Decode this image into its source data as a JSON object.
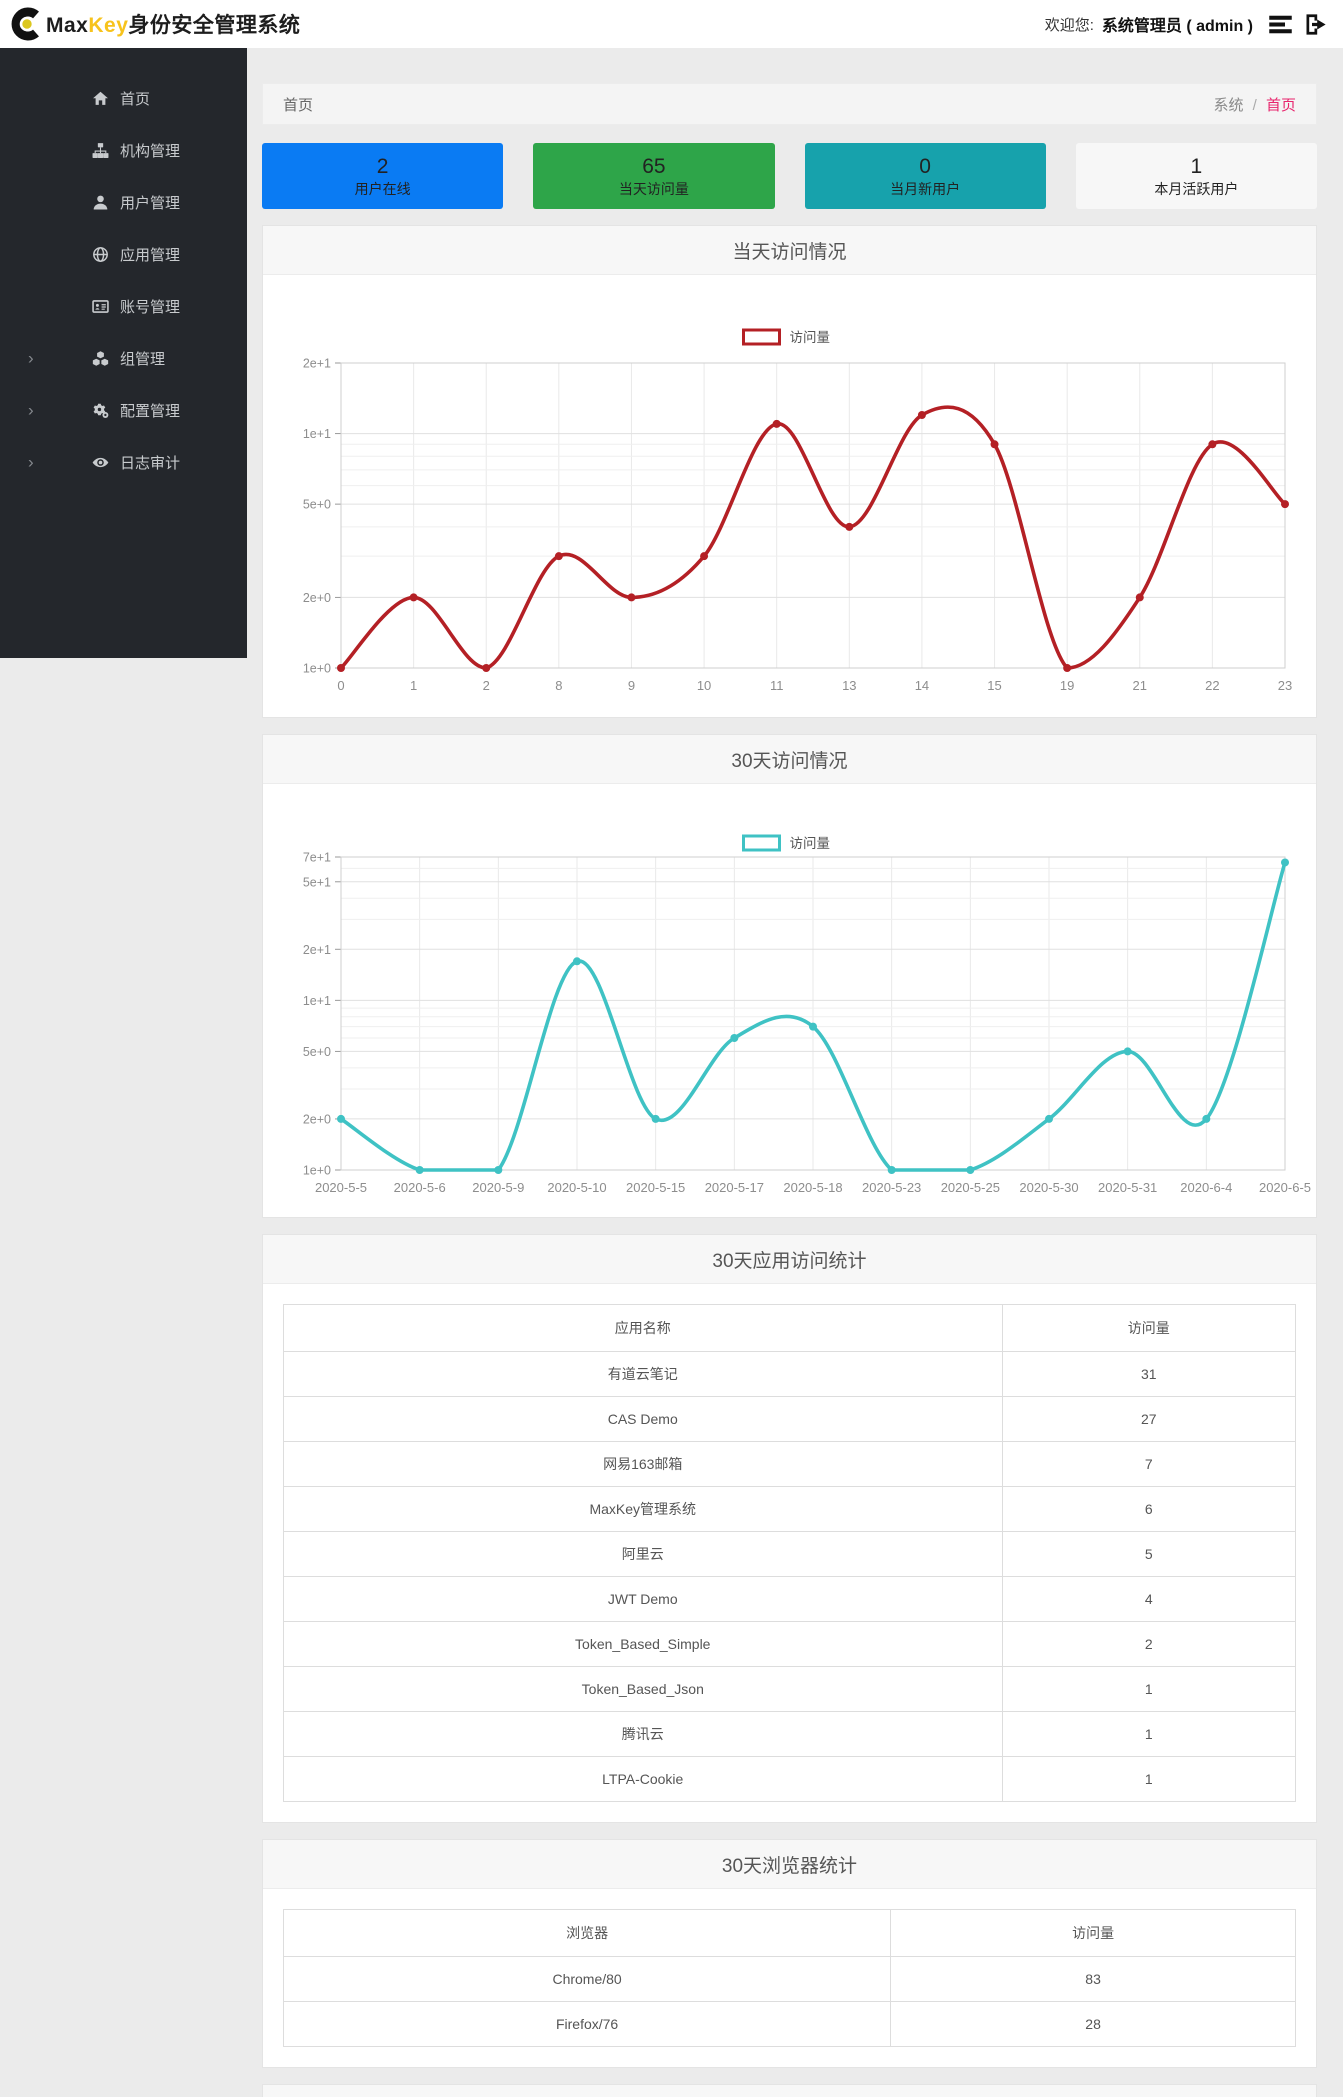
{
  "header": {
    "logo_prefix": "Max",
    "logo_highlight": "Key",
    "logo_suffix": "身份安全管理系统",
    "logo_highlight_color": "#f7c31c",
    "welcome_label": "欢迎您:",
    "username": "系统管理员 ( admin )"
  },
  "sidebar": {
    "items": [
      {
        "label": "首页",
        "icon": "home-icon",
        "expandable": false
      },
      {
        "label": "机构管理",
        "icon": "sitemap-icon",
        "expandable": false
      },
      {
        "label": "用户管理",
        "icon": "user-icon",
        "expandable": false
      },
      {
        "label": "应用管理",
        "icon": "globe-icon",
        "expandable": false
      },
      {
        "label": "账号管理",
        "icon": "id-card-icon",
        "expandable": false
      },
      {
        "label": "组管理",
        "icon": "cubes-icon",
        "expandable": true
      },
      {
        "label": "配置管理",
        "icon": "cogs-icon",
        "expandable": true
      },
      {
        "label": "日志审计",
        "icon": "eye-icon",
        "expandable": true
      }
    ]
  },
  "breadcrumb": {
    "page_title": "首页",
    "root": "系统",
    "separator": "/",
    "current": "首页",
    "current_color": "#e8256d"
  },
  "stat_cards": [
    {
      "value": "2",
      "label": "用户在线",
      "bg": "#0a7bf3"
    },
    {
      "value": "65",
      "label": "当天访问量",
      "bg": "#2ea549"
    },
    {
      "value": "0",
      "label": "当月新用户",
      "bg": "#17a2ac"
    },
    {
      "value": "1",
      "label": "本月活跃用户",
      "bg": "#f7f7f7"
    }
  ],
  "chart_data": [
    {
      "type": "line",
      "title": "当天访问情况",
      "legend": "访问量",
      "color": "#b42025",
      "smooth": true,
      "scale": "log",
      "grid": true,
      "legend_position": "top-center",
      "x": [
        "0",
        "1",
        "2",
        "8",
        "9",
        "10",
        "11",
        "13",
        "14",
        "15",
        "19",
        "21",
        "22",
        "23"
      ],
      "values": [
        1,
        2,
        1,
        3,
        2,
        3,
        11,
        4,
        12,
        9,
        1,
        2,
        9,
        5
      ],
      "xlabel": "",
      "ylabel": "",
      "ylim": [
        1,
        20
      ],
      "y_ticks": [
        "1e+0",
        "2e+0",
        "5e+0",
        "1e+1",
        "2e+1"
      ],
      "y_tick_values": [
        1,
        2,
        5,
        10,
        20
      ]
    },
    {
      "type": "line",
      "title": "30天访问情况",
      "legend": "访问量",
      "color": "#3fc2c4",
      "smooth": true,
      "scale": "log",
      "grid": true,
      "legend_position": "top-center",
      "x": [
        "2020-5-5",
        "2020-5-6",
        "2020-5-9",
        "2020-5-10",
        "2020-5-15",
        "2020-5-17",
        "2020-5-18",
        "2020-5-23",
        "2020-5-25",
        "2020-5-30",
        "2020-5-31",
        "2020-6-4",
        "2020-6-5"
      ],
      "values": [
        2,
        1,
        1,
        17,
        2,
        6,
        7,
        1,
        1,
        2,
        5,
        2,
        65
      ],
      "xlabel": "",
      "ylabel": "",
      "ylim": [
        1,
        70
      ],
      "y_ticks": [
        "1e+0",
        "2e+0",
        "5e+0",
        "1e+1",
        "2e+1",
        "5e+1",
        "7e+1"
      ],
      "y_tick_values": [
        1,
        2,
        5,
        10,
        20,
        50,
        70
      ]
    },
    {
      "type": "table",
      "title": "30天应用访问统计",
      "headers": [
        "应用名称",
        "访问量"
      ],
      "col_split": [
        71,
        29
      ],
      "rows": [
        [
          "有道云笔记",
          "31"
        ],
        [
          "CAS Demo",
          "27"
        ],
        [
          "网易163邮箱",
          "7"
        ],
        [
          "MaxKey管理系统",
          "6"
        ],
        [
          "阿里云",
          "5"
        ],
        [
          "JWT Demo",
          "4"
        ],
        [
          "Token_Based_Simple",
          "2"
        ],
        [
          "Token_Based_Json",
          "1"
        ],
        [
          "腾讯云",
          "1"
        ],
        [
          "LTPA-Cookie",
          "1"
        ]
      ]
    },
    {
      "type": "table",
      "title": "30天浏览器统计",
      "headers": [
        "浏览器",
        "访问量"
      ],
      "col_split": [
        60,
        40
      ],
      "rows": [
        [
          "Chrome/80",
          "83"
        ],
        [
          "Firefox/76",
          "28"
        ]
      ]
    }
  ]
}
